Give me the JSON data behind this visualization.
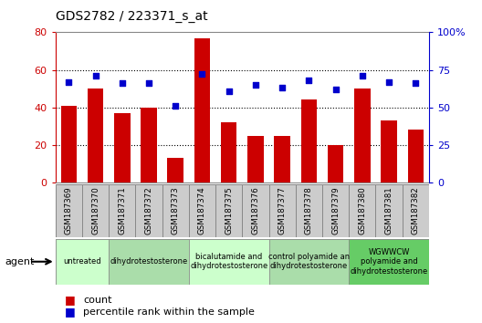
{
  "title": "GDS2782 / 223371_s_at",
  "samples": [
    "GSM187369",
    "GSM187370",
    "GSM187371",
    "GSM187372",
    "GSM187373",
    "GSM187374",
    "GSM187375",
    "GSM187376",
    "GSM187377",
    "GSM187378",
    "GSM187379",
    "GSM187380",
    "GSM187381",
    "GSM187382"
  ],
  "counts": [
    41,
    50,
    37,
    40,
    13,
    77,
    32,
    25,
    25,
    44,
    20,
    50,
    33,
    28
  ],
  "percentiles": [
    67,
    71,
    66,
    66,
    51,
    72,
    61,
    65,
    63,
    68,
    62,
    71,
    67,
    66
  ],
  "bar_color": "#cc0000",
  "dot_color": "#0000cc",
  "left_ylim": [
    0,
    80
  ],
  "right_ylim": [
    0,
    100
  ],
  "left_yticks": [
    0,
    20,
    40,
    60,
    80
  ],
  "right_yticks": [
    0,
    25,
    50,
    75,
    100
  ],
  "right_yticklabels": [
    "0",
    "25",
    "50",
    "75",
    "100%"
  ],
  "grid_values": [
    20,
    40,
    60
  ],
  "agent_groups": [
    {
      "label": "untreated",
      "start": 0,
      "end": 1,
      "color": "#ccffcc"
    },
    {
      "label": "dihydrotestosterone",
      "start": 2,
      "end": 4,
      "color": "#aaddaa"
    },
    {
      "label": "bicalutamide and\ndihydrotestosterone",
      "start": 5,
      "end": 7,
      "color": "#ccffcc"
    },
    {
      "label": "control polyamide an\ndihydrotestosterone",
      "start": 8,
      "end": 10,
      "color": "#aaddaa"
    },
    {
      "label": "WGWWCW\npolyamide and\ndihydrotestosterone",
      "start": 11,
      "end": 13,
      "color": "#66cc66"
    }
  ],
  "legend_count_label": "count",
  "legend_pct_label": "percentile rank within the sample",
  "agent_label": "agent",
  "background_color": "#ffffff",
  "sample_box_color": "#cccccc",
  "sample_box_edge": "#888888"
}
